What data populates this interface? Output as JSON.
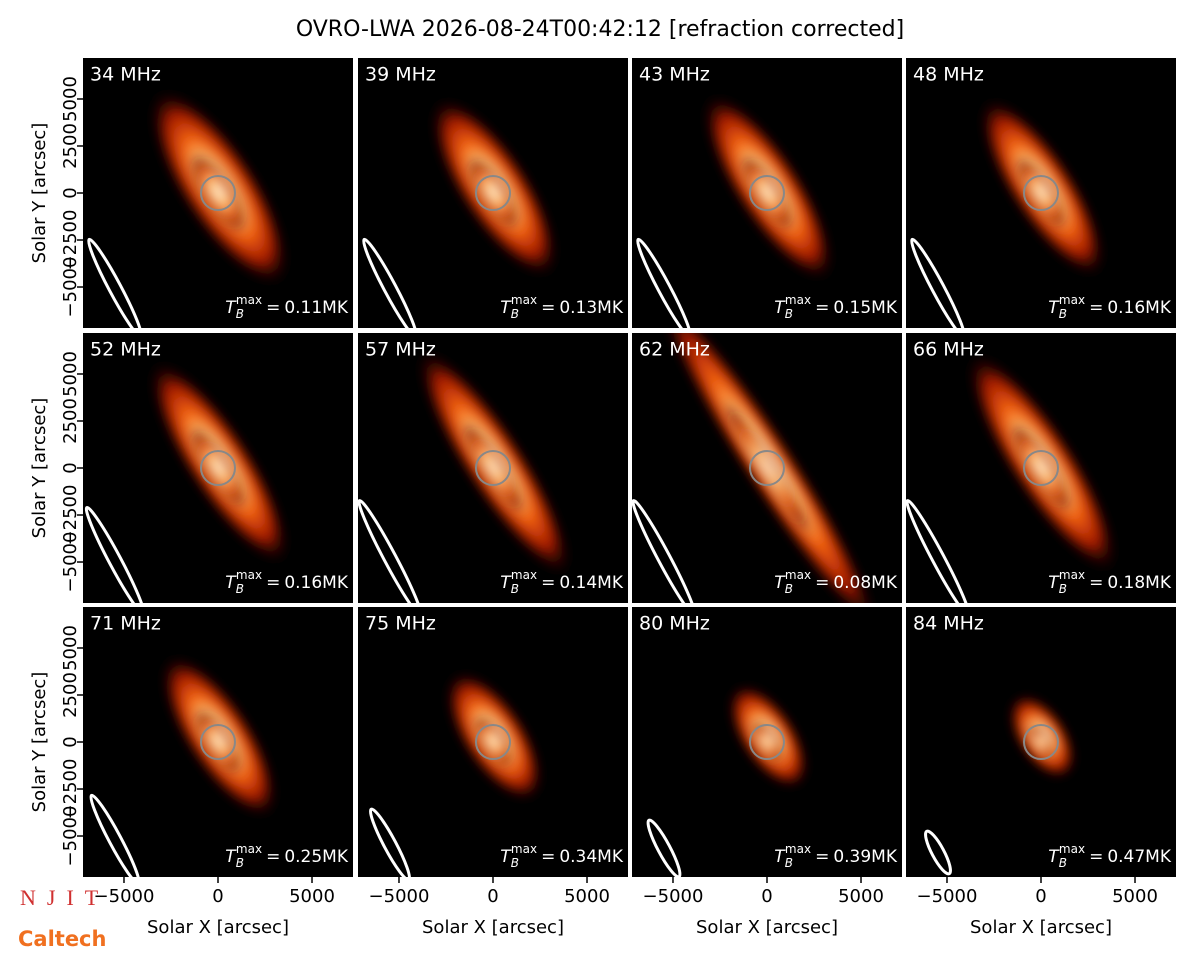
{
  "chart_data": {
    "type": "image",
    "title": "OVRO-LWA 2026-08-24T00:42:12 [refraction corrected]",
    "xlabel": "Solar X [arcsec]",
    "ylabel": "Solar Y [arcsec]",
    "xlim": [
      -7180,
      7180
    ],
    "ylim": [
      -7180,
      7180
    ],
    "xticks": [
      {
        "value": -5000,
        "label": "−5000"
      },
      0,
      5000
    ],
    "yticks": [
      {
        "value": -5000,
        "label": "−5000"
      },
      {
        "value": -2500,
        "label": "−2500"
      },
      0,
      2500,
      5000
    ],
    "tb_symbol": "T",
    "tb_sub": "B",
    "tb_sup": "max",
    "tb_eq": "=",
    "panels": [
      {
        "label": "34 MHz",
        "tb": "0.11MK"
      },
      {
        "label": "39 MHz",
        "tb": "0.13MK"
      },
      {
        "label": "43 MHz",
        "tb": "0.15MK"
      },
      {
        "label": "48 MHz",
        "tb": "0.16MK"
      },
      {
        "label": "52 MHz",
        "tb": "0.16MK"
      },
      {
        "label": "57 MHz",
        "tb": "0.14MK"
      },
      {
        "label": "62 MHz",
        "tb": "0.08MK"
      },
      {
        "label": "66 MHz",
        "tb": "0.18MK"
      },
      {
        "label": "71 MHz",
        "tb": "0.25MK"
      },
      {
        "label": "75 MHz",
        "tb": "0.34MK"
      },
      {
        "label": "80 MHz",
        "tb": "0.39MK"
      },
      {
        "label": "84 MHz",
        "tb": "0.47MK"
      }
    ]
  },
  "logos": {
    "njit": "NJIT",
    "caltech": "Caltech"
  }
}
